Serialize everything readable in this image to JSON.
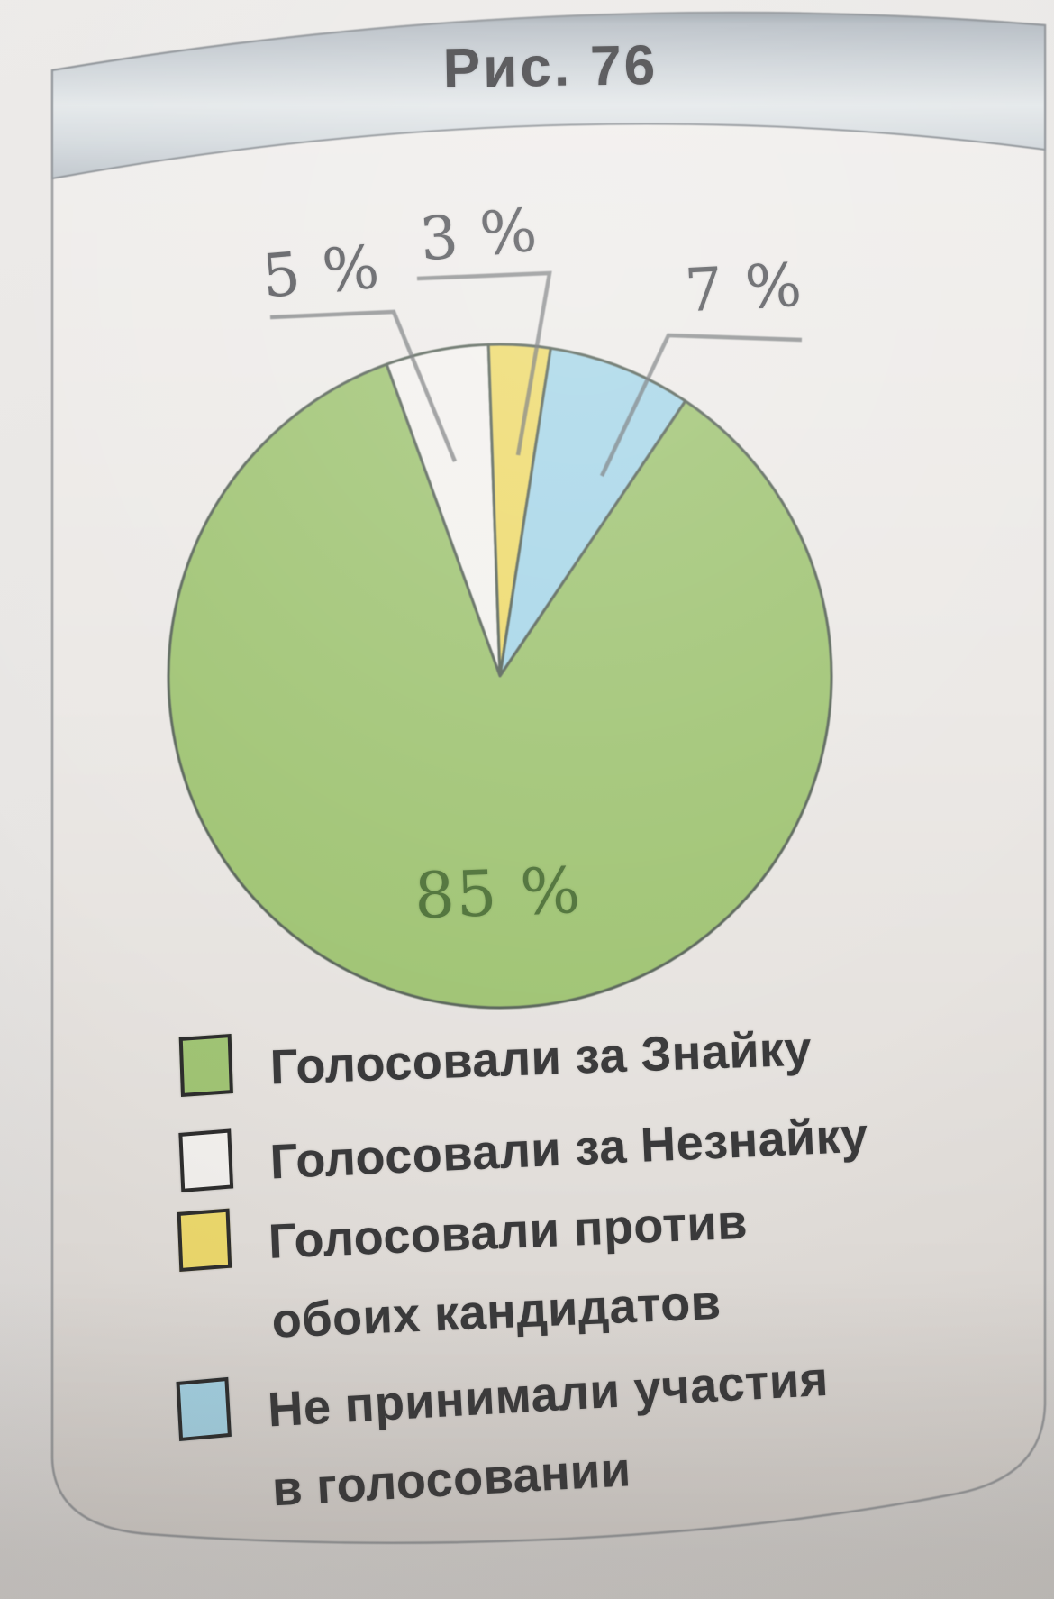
{
  "chart_data": {
    "type": "pie",
    "title": "Рис. 76",
    "unit": "%",
    "start_angle_deg": -20,
    "slices": [
      {
        "label": "Голосовали за Незнайку",
        "value": 5,
        "display_label": "5 %",
        "color": "#f3f1ee"
      },
      {
        "label": "Голосовали против обоих кандидатов",
        "value": 3,
        "display_label": "3 %",
        "color": "#eeda6c"
      },
      {
        "label": "Не принимали участия в голосовании",
        "value": 7,
        "display_label": "7 %",
        "color": "#a7d6e8"
      },
      {
        "label": "Голосовали за Знайку",
        "value": 85,
        "display_label": "85 %",
        "color": "#a0c474"
      }
    ],
    "legend": [
      {
        "color": "#a0c474",
        "line1": "Голосовали за Знайку",
        "line2": ""
      },
      {
        "color": "#f3f1ee",
        "line1": "Голосовали за Незнайку",
        "line2": ""
      },
      {
        "color": "#eeda6c",
        "line1": "Голосовали против",
        "line2": "обоих кандидатов"
      },
      {
        "color": "#a7d6e8",
        "line1": "Не принимали участия",
        "line2": "в голосовании"
      }
    ],
    "legend_position": "bottom-left",
    "grid": "off",
    "outline_color": "#59655a",
    "leader_line_color": "#6d7073",
    "value_label_color": "#58595d",
    "big_label_color": "#4d7137"
  }
}
